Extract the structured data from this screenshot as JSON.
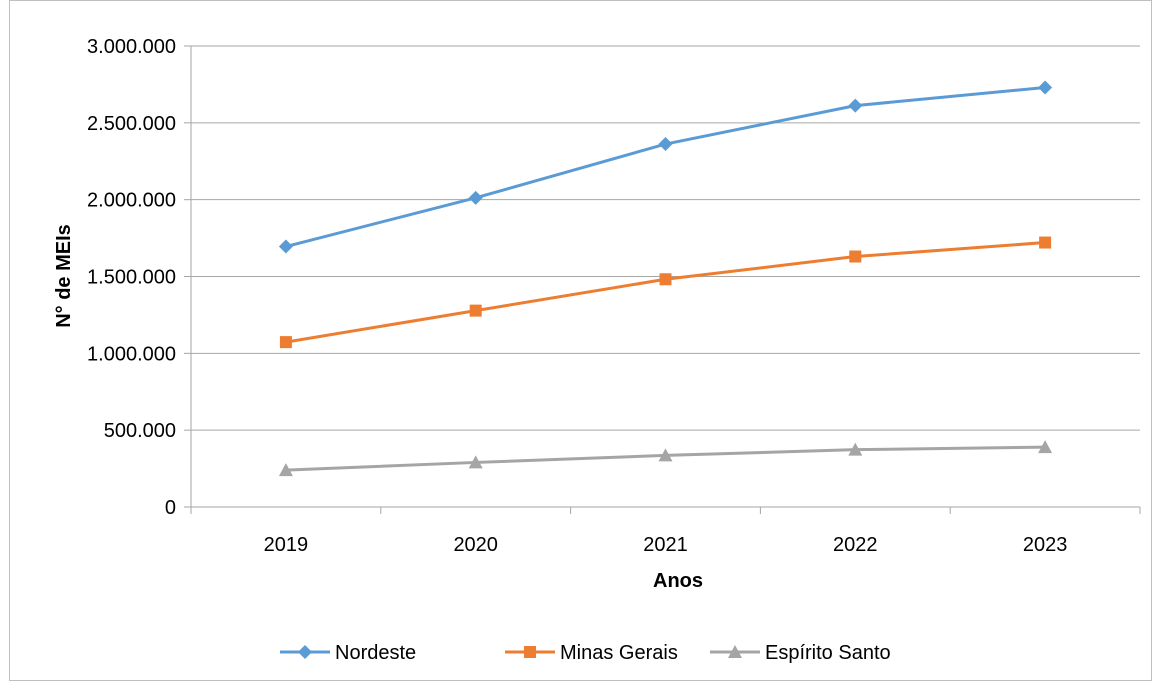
{
  "chart_data": {
    "type": "line",
    "title": "",
    "xlabel": "Anos",
    "ylabel": "N° de MEIs",
    "categories": [
      "2019",
      "2020",
      "2021",
      "2022",
      "2023"
    ],
    "ylim": [
      0,
      3000000
    ],
    "yticks": [
      0,
      500000,
      1000000,
      1500000,
      2000000,
      2500000,
      3000000
    ],
    "ytick_labels": [
      "0",
      "500.000",
      "1.000.000",
      "1.500.000",
      "2.000.000",
      "2.500.000",
      "3.000.000"
    ],
    "grid": true,
    "legend_position": "bottom",
    "series": [
      {
        "name": "Nordeste",
        "values": [
          1695000,
          2012000,
          2362000,
          2612000,
          2730000
        ],
        "color": "#5b9bd5",
        "marker": "diamond"
      },
      {
        "name": "Minas Gerais",
        "values": [
          1073000,
          1278000,
          1482000,
          1630000,
          1721000
        ],
        "color": "#ed7d31",
        "marker": "square"
      },
      {
        "name": "Espírito Santo",
        "values": [
          240000,
          290000,
          336000,
          373000,
          390000
        ],
        "color": "#a5a5a5",
        "marker": "triangle"
      }
    ]
  }
}
